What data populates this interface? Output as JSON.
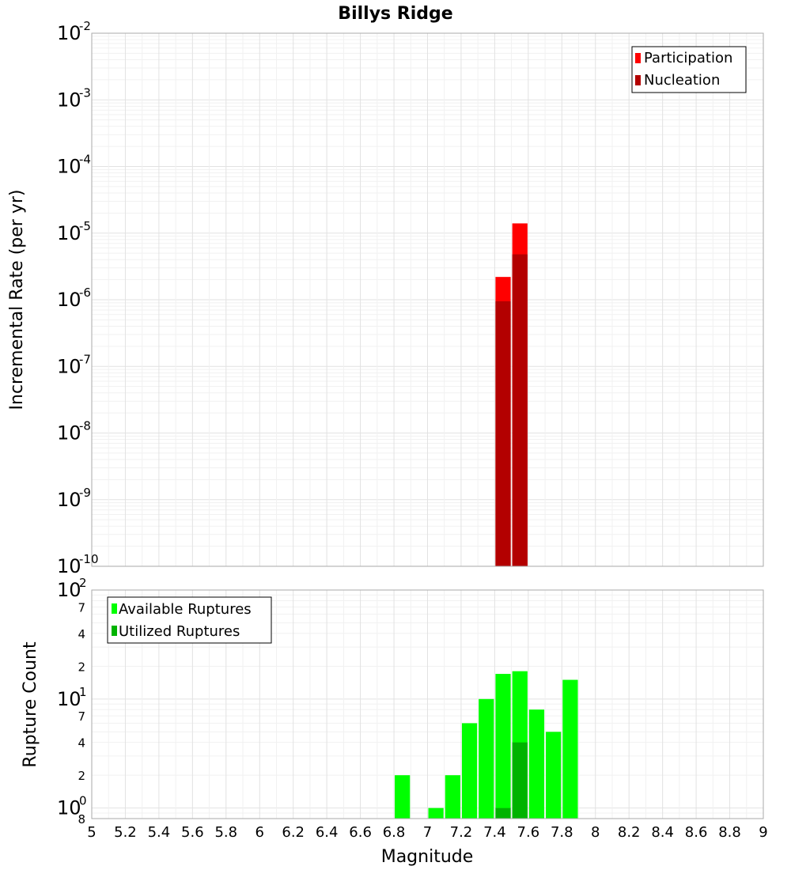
{
  "chart_data": [
    {
      "type": "bar",
      "title": "Billys Ridge",
      "ylabel": "Incremental Rate (per yr)",
      "xlim": [
        5,
        9
      ],
      "ylim": [
        1e-10,
        0.01
      ],
      "y_scale": "log",
      "grid": true,
      "legend_position": "top-right",
      "bin_width": 0.1,
      "series": [
        {
          "name": "Participation",
          "color": "#ff0000",
          "x": [
            7.45,
            7.55
          ],
          "values": [
            2.2e-06,
            1.4e-05
          ]
        },
        {
          "name": "Nucleation",
          "color": "#b30000",
          "x": [
            7.45,
            7.55
          ],
          "values": [
            9.5e-07,
            4.8e-06
          ]
        }
      ],
      "y_tick_exponents": [
        -10,
        -9,
        -8,
        -7,
        -6,
        -5,
        -4,
        -3,
        -2
      ]
    },
    {
      "type": "bar",
      "xlabel": "Magnitude",
      "ylabel": "Rupture Count",
      "xlim": [
        5,
        9
      ],
      "ylim": [
        0.8,
        100
      ],
      "y_scale": "log",
      "grid": true,
      "legend_position": "top-left",
      "bin_width": 0.1,
      "series": [
        {
          "name": "Available Ruptures",
          "color": "#00ff00",
          "x": [
            6.85,
            7.05,
            7.15,
            7.25,
            7.35,
            7.45,
            7.55,
            7.65,
            7.75,
            7.85
          ],
          "values": [
            2,
            1,
            2,
            6,
            10,
            17,
            18,
            8,
            5,
            15
          ]
        },
        {
          "name": "Utilized Ruptures",
          "color": "#00b300",
          "x": [
            7.45,
            7.55
          ],
          "values": [
            1,
            4
          ]
        }
      ],
      "y_major_ticks": [
        {
          "value": 1,
          "base": "10",
          "exp": "0"
        },
        {
          "value": 10,
          "base": "10",
          "exp": "1"
        },
        {
          "value": 100,
          "base": "10",
          "exp": "2"
        }
      ],
      "y_minor_ticks": [
        {
          "value": 0.8,
          "label": "8"
        },
        {
          "value": 2,
          "label": "2"
        },
        {
          "value": 4,
          "label": "4"
        },
        {
          "value": 7,
          "label": "7"
        },
        {
          "value": 20,
          "label": "2"
        },
        {
          "value": 40,
          "label": "4"
        },
        {
          "value": 70,
          "label": "7"
        }
      ],
      "x_ticks": [
        "5",
        "5.2",
        "5.4",
        "5.6",
        "5.8",
        "6",
        "6.2",
        "6.4",
        "6.6",
        "6.8",
        "7",
        "7.2",
        "7.4",
        "7.6",
        "7.8",
        "8",
        "8.2",
        "8.4",
        "8.6",
        "8.8",
        "9"
      ]
    }
  ]
}
